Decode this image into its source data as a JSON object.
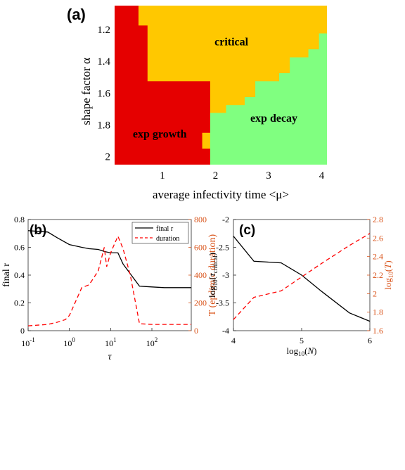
{
  "chart_data": [
    {
      "type": "heatmap",
      "panel_label": "(a)",
      "xlabel": "average infectivity time <μ>",
      "ylabel": "shape factor α",
      "x_ticks": [
        "1",
        "2",
        "3",
        "4"
      ],
      "y_ticks": [
        "1.2",
        "1.4",
        "1.6",
        "1.8",
        "2"
      ],
      "xlim": [
        0.1,
        4.1
      ],
      "ylim": [
        1.05,
        2.05
      ],
      "regions": [
        {
          "name": "exp growth",
          "color": "#e50000"
        },
        {
          "name": "critical",
          "color": "#ffc800"
        },
        {
          "name": "exp decay",
          "color": "#80ff80"
        }
      ],
      "labels": [
        {
          "text": "critical",
          "x": 2.3,
          "y": 1.3
        },
        {
          "text": "exp decay",
          "x": 3.1,
          "y": 1.78
        },
        {
          "text": "exp growth",
          "x": 0.95,
          "y": 1.88
        }
      ],
      "boundaries": {
        "critical_lower_edge": [
          {
            "x": [
              0.1,
              0.55
            ],
            "y": 1.05
          },
          {
            "x": [
              0.55,
              0.72
            ],
            "y": 1.175
          },
          {
            "x": [
              0.72,
              1.1
            ],
            "y": 1.525
          },
          {
            "x": [
              1.1,
              1.9
            ],
            "y": 1.525
          }
        ],
        "critical_upper_edge": [
          {
            "x": [
              1.9,
              2.2
            ],
            "y": 1.725
          },
          {
            "x": [
              2.2,
              2.55
            ],
            "y": 1.675
          },
          {
            "x": [
              2.55,
              2.75
            ],
            "y": 1.625
          },
          {
            "x": [
              2.75,
              3.2
            ],
            "y": 1.525
          },
          {
            "x": [
              3.2,
              3.4
            ],
            "y": 1.475
          },
          {
            "x": [
              3.4,
              3.75
            ],
            "y": 1.375
          },
          {
            "x": [
              3.75,
              3.95
            ],
            "y": 1.325
          },
          {
            "x": [
              3.95,
              4.1
            ],
            "y": 1.225
          }
        ]
      }
    },
    {
      "type": "line",
      "panel_label": "(b)",
      "xlabel": "τ",
      "ylabel_left": "final r",
      "ylabel_right": "T (epdimic duration)",
      "xscale": "log",
      "x_ticks": [
        "10",
        "10",
        "10",
        "10"
      ],
      "x_tick_exponents": [
        "-1",
        "0",
        "1",
        "2"
      ],
      "x_tick_values": [
        0.1,
        1,
        10,
        100
      ],
      "xlim": [
        0.1,
        900
      ],
      "ylim_left": [
        0,
        0.8
      ],
      "ylim_right": [
        0,
        800
      ],
      "y_ticks_left": [
        "0",
        "0.2",
        "0.4",
        "0.6",
        "0.8"
      ],
      "y_ticks_right": [
        "0",
        "200",
        "400",
        "600",
        "800"
      ],
      "legend_position": "top-right",
      "series": [
        {
          "name": "final r",
          "axis": "left",
          "color": "#000000",
          "dash": "solid",
          "x": [
            0.1,
            0.3,
            0.5,
            1,
            2,
            3,
            5,
            7,
            10,
            15,
            20,
            50,
            100,
            200,
            900
          ],
          "y": [
            0.72,
            0.71,
            0.67,
            0.62,
            0.6,
            0.59,
            0.585,
            0.57,
            0.56,
            0.56,
            0.48,
            0.32,
            0.315,
            0.31,
            0.31
          ]
        },
        {
          "name": "duration",
          "axis": "right",
          "color": "#ff0000",
          "dash": "dashed",
          "x": [
            0.1,
            0.3,
            0.5,
            0.8,
            1,
            2,
            3,
            5,
            7,
            8,
            10,
            15,
            20,
            30,
            50,
            100,
            200,
            900
          ],
          "y": [
            35,
            45,
            60,
            80,
            110,
            310,
            330,
            430,
            600,
            460,
            560,
            680,
            590,
            400,
            50,
            45,
            45,
            45
          ]
        }
      ]
    },
    {
      "type": "line",
      "panel_label": "(c)",
      "xlabel": "log10(N)",
      "ylabel_left": "log10(τcritical)",
      "ylabel_right": "log10(T)",
      "xlim": [
        4,
        6
      ],
      "ylim_left": [
        -4,
        -2
      ],
      "ylim_right": [
        1.6,
        2.8
      ],
      "x_ticks": [
        "4",
        "5",
        "6"
      ],
      "y_ticks_left": [
        "-4",
        "-3.5",
        "-3",
        "-2.5",
        "-2"
      ],
      "y_ticks_right": [
        "1.6",
        "1.8",
        "2",
        "2.2",
        "2.4",
        "2.6",
        "2.8"
      ],
      "series": [
        {
          "axis": "left",
          "color": "#000000",
          "dash": "solid",
          "x": [
            4,
            4.3,
            4.7,
            5,
            5.3,
            5.7,
            6
          ],
          "y": [
            -2.3,
            -2.75,
            -2.78,
            -3.0,
            -3.3,
            -3.68,
            -3.83
          ]
        },
        {
          "axis": "right",
          "color": "#ff0000",
          "dash": "dashed",
          "x": [
            4,
            4.3,
            4.7,
            5,
            5.3,
            5.7,
            6
          ],
          "y": [
            1.72,
            1.96,
            2.03,
            2.18,
            2.33,
            2.52,
            2.65
          ]
        }
      ]
    }
  ]
}
